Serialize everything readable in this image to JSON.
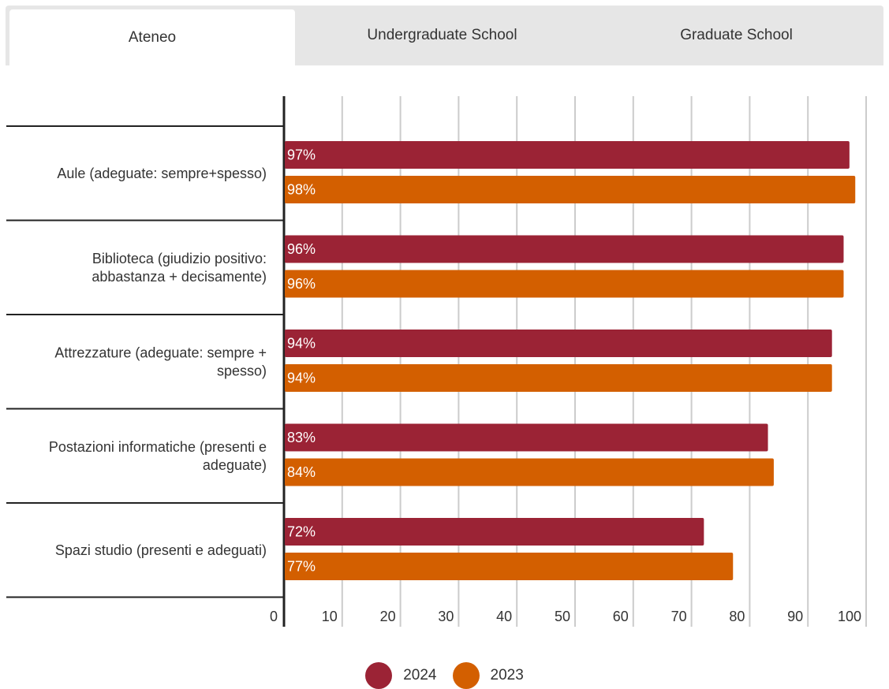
{
  "tabs": [
    {
      "label": "Ateneo",
      "active": true
    },
    {
      "label": "Undergraduate School",
      "active": false
    },
    {
      "label": "Graduate School",
      "active": false
    }
  ],
  "colors": {
    "series_2024": "#9b2335",
    "series_2023": "#d35f00",
    "gridline": "#cccccc",
    "axis": "#222222"
  },
  "chart_data": {
    "type": "bar",
    "orientation": "horizontal",
    "categories": [
      [
        "Aule (adeguate: sempre+spesso)"
      ],
      [
        "Biblioteca (giudizio positivo:",
        "abbastanza + decisamente)"
      ],
      [
        "Attrezzature (adeguate: sempre +",
        "spesso)"
      ],
      [
        "Postazioni informatiche (presenti e",
        "adeguate)"
      ],
      [
        "Spazi studio (presenti e adeguati)"
      ]
    ],
    "series": [
      {
        "name": "2024",
        "values": [
          97,
          96,
          94,
          83,
          72
        ],
        "labels": [
          "97%",
          "96%",
          "94%",
          "83%",
          "72%"
        ]
      },
      {
        "name": "2023",
        "values": [
          98,
          96,
          94,
          84,
          77
        ],
        "labels": [
          "98%",
          "96%",
          "94%",
          "84%",
          "77%"
        ]
      }
    ],
    "xlim": [
      0,
      100
    ],
    "xticks": [
      0,
      10,
      20,
      30,
      40,
      50,
      60,
      70,
      80,
      90,
      100
    ],
    "grid": true,
    "legend": "bottom-center"
  }
}
